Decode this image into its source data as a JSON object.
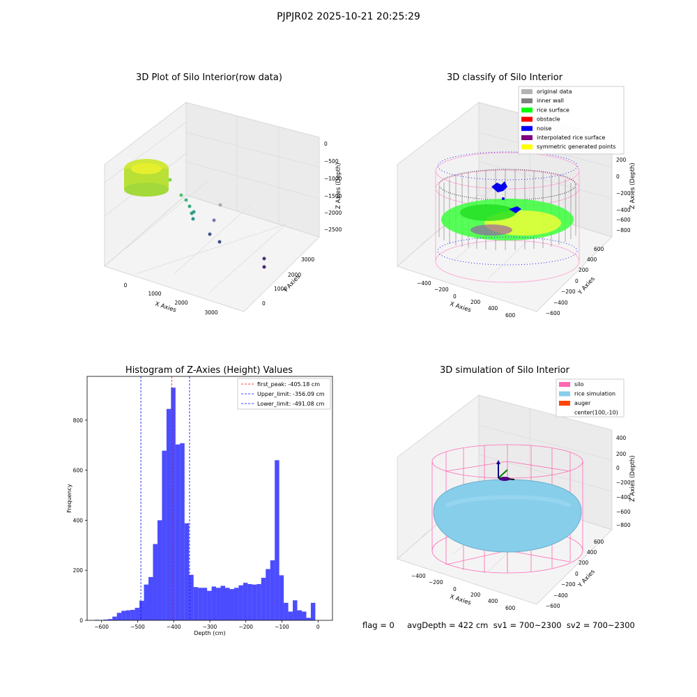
{
  "figure": {
    "suptitle": "PJPJR02 2025-10-21 20:25:29",
    "footer": "flag = 0     avgDepth = 422 cm  sv1 = 700~2300  sv2 = 700~2300"
  },
  "panels": {
    "raw": {
      "title": "3D Plot of Silo Interior(row data)",
      "xlabel": "X Axies",
      "ylabel": "Y Axies",
      "zlabel": "Z Axies (Depth)",
      "xticks": [
        "0",
        "1000",
        "2000",
        "3000"
      ],
      "yticks": [
        "0",
        "1000",
        "2000",
        "3000"
      ],
      "zticks": [
        "0",
        "−500",
        "−1000",
        "−1500",
        "−2000",
        "−2500"
      ]
    },
    "classify": {
      "title": "3D classify of Silo Interior",
      "xlabel": "X Axies",
      "ylabel": "Y Axies",
      "zlabel": "Z Axies (Depth)",
      "xticks": [
        "−400",
        "−200",
        "0",
        "200",
        "400",
        "600"
      ],
      "yticks": [
        "−600",
        "−400",
        "−200",
        "0",
        "200",
        "400",
        "600"
      ],
      "zticks": [
        "200",
        "0",
        "−200",
        "−400",
        "−600",
        "−800"
      ],
      "legend": [
        {
          "label": "original data",
          "color": "#b3b3b3"
        },
        {
          "label": "inner wall",
          "color": "#808080"
        },
        {
          "label": "rice surface",
          "color": "#00ff00"
        },
        {
          "label": "obstacle",
          "color": "#ff0000"
        },
        {
          "label": "noise",
          "color": "#0000ff"
        },
        {
          "label": "interpolated rice surface",
          "color": "#800080"
        },
        {
          "label": "symmetric generated points",
          "color": "#ffff00"
        }
      ]
    },
    "simulation": {
      "title": "3D simulation of Silo Interior",
      "xlabel": "X Axies",
      "ylabel": "Y Axies",
      "zlabel": "Z Axies (Depth)",
      "xticks": [
        "−400",
        "−200",
        "0",
        "200",
        "400",
        "600"
      ],
      "yticks": [
        "−600",
        "−400",
        "−200",
        "0",
        "200",
        "400",
        "600"
      ],
      "zticks": [
        "400",
        "200",
        "0",
        "−200",
        "−400",
        "−600",
        "−800"
      ],
      "legend": [
        {
          "label": "silo",
          "color": "#ff69b4"
        },
        {
          "label": "rice simulation",
          "color": "#87ceeb"
        },
        {
          "label": "auger",
          "color": "#ff4500"
        },
        {
          "label": "center(100,-10)",
          "color": ""
        }
      ]
    }
  },
  "chart_data": {
    "type": "bar",
    "title": "Histogram of Z-Axies (Height) Values",
    "xlabel": "Depth (cm)",
    "ylabel": "Frequency",
    "xlim": [
      -640,
      40
    ],
    "ylim": [
      0,
      975
    ],
    "xticks": [
      -600,
      -500,
      -400,
      -300,
      -200,
      -100,
      0
    ],
    "yticks": [
      0,
      200,
      400,
      600,
      800
    ],
    "bin_width": 12.5,
    "bin_start": -620,
    "values": [
      2,
      1,
      3,
      5,
      15,
      30,
      38,
      40,
      42,
      50,
      78,
      143,
      173,
      305,
      400,
      678,
      845,
      930,
      703,
      708,
      388,
      182,
      133,
      130,
      130,
      118,
      135,
      130,
      138,
      130,
      125,
      130,
      140,
      150,
      145,
      143,
      145,
      170,
      205,
      240,
      640,
      180,
      70,
      35,
      80,
      40,
      35,
      10,
      70
    ],
    "color": "#0000ff",
    "vlines": [
      {
        "label": "first_peak: -405.18 cm",
        "x": -405.18,
        "color": "#ff0000"
      },
      {
        "label": "Upper_limit: -356.09 cm",
        "x": -356.09,
        "color": "#0000ff"
      },
      {
        "label": "Lower_limit: -491.08 cm",
        "x": -491.08,
        "color": "#0000ff"
      }
    ],
    "legend_position": "upper right"
  }
}
